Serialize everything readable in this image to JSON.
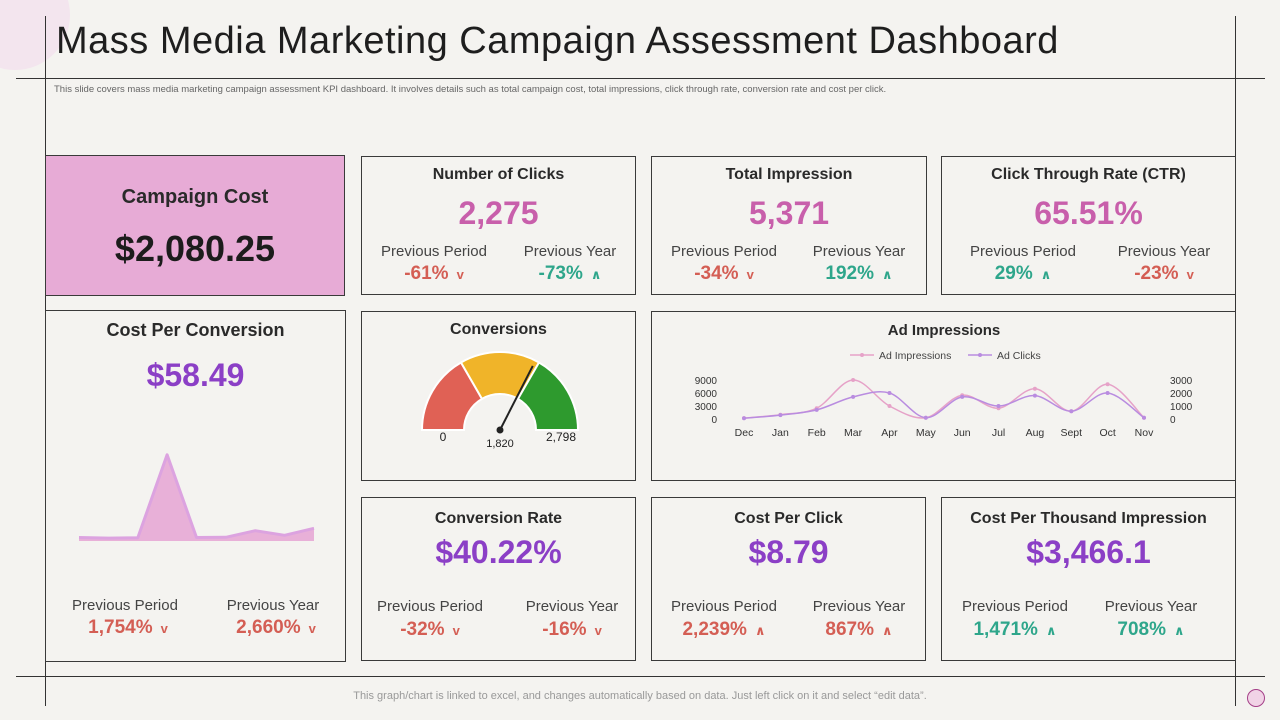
{
  "title": "Mass Media Marketing Campaign Assessment Dashboard",
  "subtitle": "This slide covers mass media marketing campaign assessment KPI dashboard. It involves details such as total campaign cost, total impressions, click through rate, conversion rate and cost per click.",
  "footer": "This graph/chart is linked to excel, and changes automatically based on data. Just left click on it and select “edit data”.",
  "colors": {
    "pink_value": "#c85fab",
    "violet_value": "#8b3fc6",
    "negative": "#d45e54",
    "positive": "#2ea68b",
    "campaign_card_bg": "#e7abd6"
  },
  "campaign_cost": {
    "label": "Campaign Cost",
    "value": "$2,080.25"
  },
  "kpis": [
    {
      "title": "Number of Clicks",
      "value": "2,275",
      "prev_period_label": "Previous Period",
      "prev_period": "-61%",
      "prev_period_dir": "down",
      "prev_year_label": "Previous Year",
      "prev_year": "-73%",
      "prev_year_dir": "up"
    },
    {
      "title": "Total Impression",
      "value": "5,371",
      "prev_period_label": "Previous Period",
      "prev_period": "-34%",
      "prev_period_dir": "down",
      "prev_year_label": "Previous Year",
      "prev_year": "192%",
      "prev_year_dir": "up"
    },
    {
      "title": "Click Through Rate (CTR)",
      "value": "65.51%",
      "prev_period_label": "Previous Period",
      "prev_period": "29%",
      "prev_period_dir": "up",
      "prev_year_label": "Previous Year",
      "prev_year": "-23%",
      "prev_year_dir": "down"
    },
    {
      "title": "Conversion Rate",
      "value": "$40.22%",
      "prev_period_label": "Previous Period",
      "prev_period": "-32%",
      "prev_period_dir": "down",
      "prev_year_label": "Previous Year",
      "prev_year": "-16%",
      "prev_year_dir": "down"
    },
    {
      "title": "Cost Per Click",
      "value": "$8.79",
      "prev_period_label": "Previous Period",
      "prev_period": "2,239%",
      "prev_period_dir": "up",
      "prev_year_label": "Previous Year",
      "prev_year": "867%",
      "prev_year_dir": "up"
    },
    {
      "title": "Cost Per Thousand Impression",
      "value": "$3,466.1",
      "prev_period_label": "Previous Period",
      "prev_period": "1,471%",
      "prev_period_dir": "up",
      "prev_year_label": "Previous Year",
      "prev_year": "708%",
      "prev_year_dir": "up"
    }
  ],
  "arrows": {
    "up": "∧",
    "down": "v"
  },
  "cost_per_conversion": {
    "title": "Cost Per Conversion",
    "value": "$58.49",
    "prev_period_label": "Previous Period",
    "prev_period": "1,754%",
    "prev_period_dir": "down",
    "prev_year_label": "Previous Year",
    "prev_year": "2,660%",
    "prev_year_dir": "down"
  },
  "conversions": {
    "title": "Conversions",
    "min_label": "0",
    "max_label": "2,798",
    "value_label": "1,820",
    "min": 0,
    "max": 2798,
    "value": 1820,
    "bands": [
      "#e06155",
      "#f0b429",
      "#2e9a2e"
    ]
  },
  "chart_data": [
    {
      "type": "area",
      "title": "",
      "x": [
        1,
        2,
        3,
        4,
        5,
        6,
        7,
        8,
        9
      ],
      "values": [
        0.3,
        0.25,
        0.28,
        7.5,
        0.3,
        0.32,
        0.9,
        0.5,
        1.1
      ],
      "ylim": [
        0,
        8
      ],
      "grid": false,
      "color": "#dca3e0"
    },
    {
      "type": "line",
      "title": "Ad Impressions",
      "categories": [
        "Dec",
        "Jan",
        "Feb",
        "Mar",
        "Apr",
        "May",
        "Jun",
        "Jul",
        "Aug",
        "Sept",
        "Oct",
        "Nov"
      ],
      "series": [
        {
          "name": "Ad Impressions",
          "axis": "left",
          "color": "#e6a2c8",
          "values": [
            200,
            1000,
            2500,
            9000,
            3000,
            300,
            5500,
            2500,
            7000,
            1800,
            8000,
            300
          ]
        },
        {
          "name": "Ad Clicks",
          "axis": "right",
          "color": "#b98ce0",
          "values": [
            50,
            300,
            700,
            1700,
            2000,
            100,
            1700,
            1000,
            1800,
            600,
            2000,
            100
          ]
        }
      ],
      "y_left": {
        "ticks": [
          "9000",
          "6000",
          "3000",
          "0"
        ],
        "ylim": [
          0,
          9000
        ]
      },
      "y_right": {
        "ticks": [
          "3000",
          "2000",
          "1000",
          "0"
        ],
        "ylim": [
          0,
          3000
        ]
      },
      "legend": "top",
      "grid": false
    }
  ]
}
